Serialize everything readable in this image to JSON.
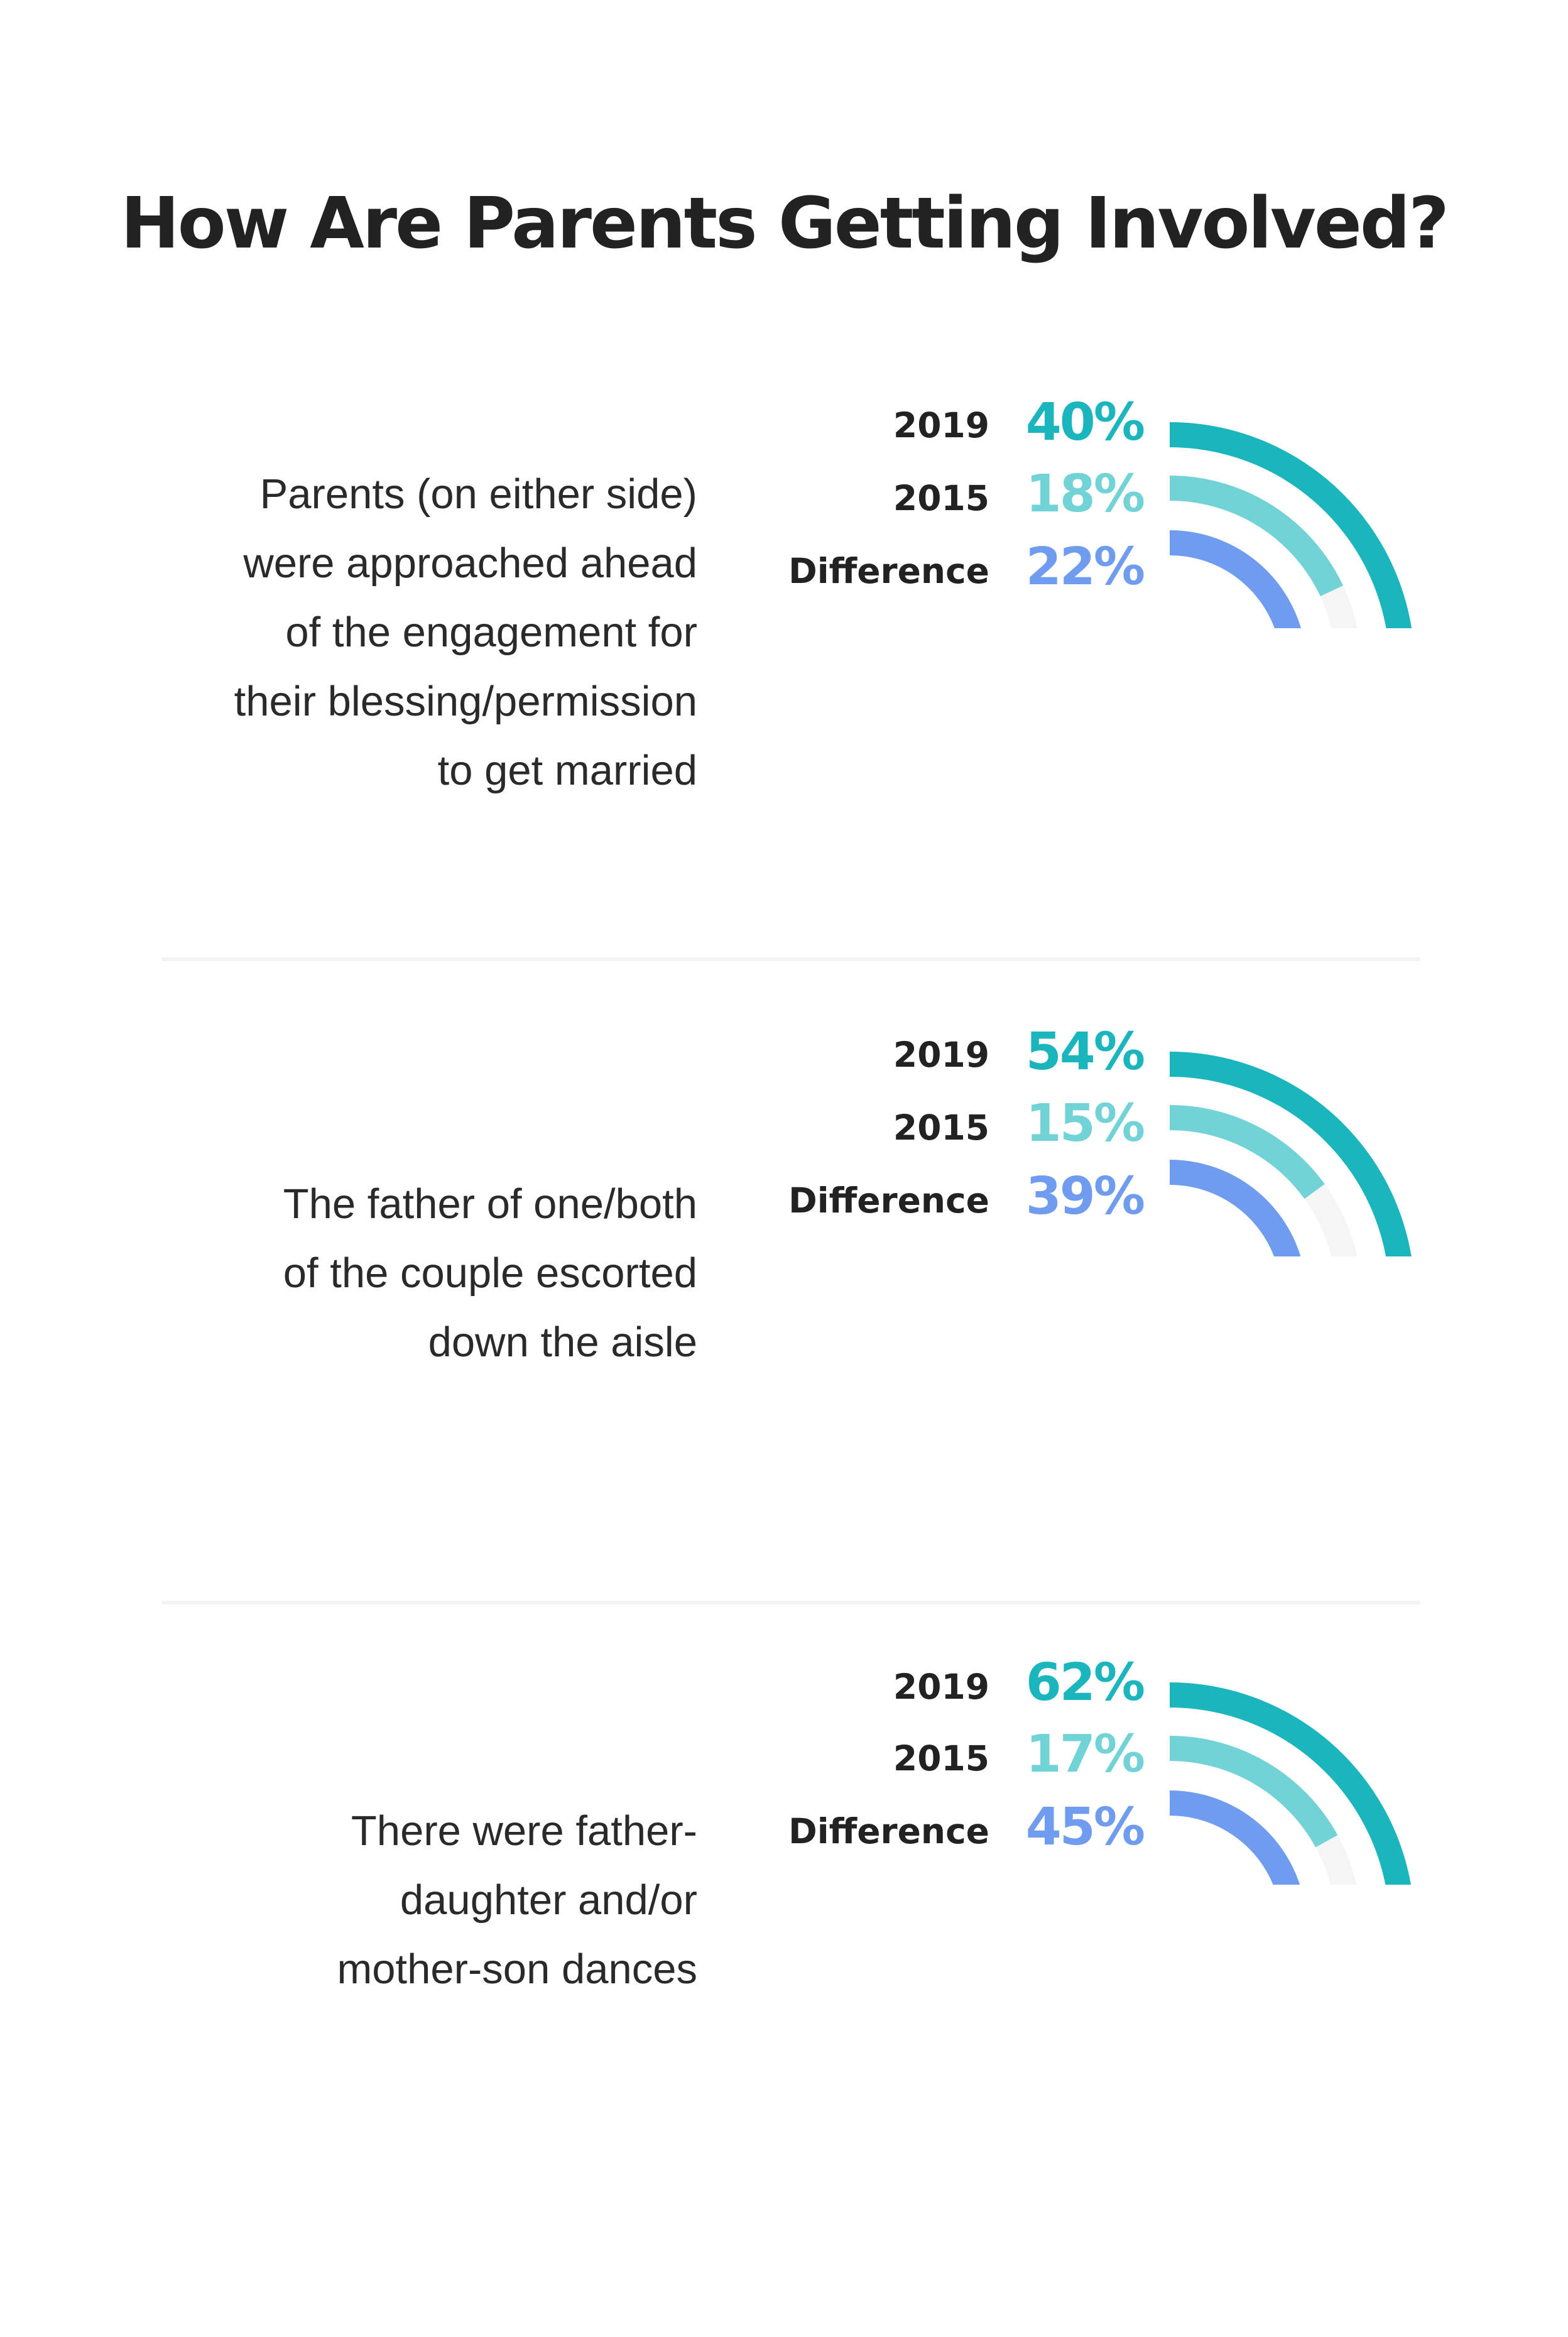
{
  "title": "How Are Parents Getting Involved?",
  "colors": {
    "y2019": "#1bb5bd",
    "y2015": "#72d3d6",
    "difference": "#6f9cee",
    "track": "#f5f5f5",
    "text": "#222222"
  },
  "row_labels": {
    "y2019": "2019",
    "y2015": "2015",
    "difference": "Difference"
  },
  "chart_data": [
    {
      "type": "radial-bar",
      "description": [
        "Parents (on either side)",
        "were approached ahead",
        "of the engagement for",
        "their blessing/permission",
        "to get married"
      ],
      "series": [
        {
          "name": "2019",
          "value": 40,
          "display": "40%"
        },
        {
          "name": "2015",
          "value": 18,
          "display": "18%"
        },
        {
          "name": "Difference",
          "value": 22,
          "display": "22%"
        }
      ]
    },
    {
      "type": "radial-bar",
      "description": [
        "The father of one/both",
        "of the couple escorted",
        "down the aisle"
      ],
      "series": [
        {
          "name": "2019",
          "value": 54,
          "display": "54%"
        },
        {
          "name": "2015",
          "value": 15,
          "display": "15%"
        },
        {
          "name": "Difference",
          "value": 39,
          "display": "39%"
        }
      ]
    },
    {
      "type": "radial-bar",
      "description": [
        "There were father-",
        "daughter and/or",
        "mother-son dances"
      ],
      "series": [
        {
          "name": "2019",
          "value": 62,
          "display": "62%"
        },
        {
          "name": "2015",
          "value": 17,
          "display": "17%"
        },
        {
          "name": "Difference",
          "value": 45,
          "display": "45%"
        }
      ]
    }
  ]
}
